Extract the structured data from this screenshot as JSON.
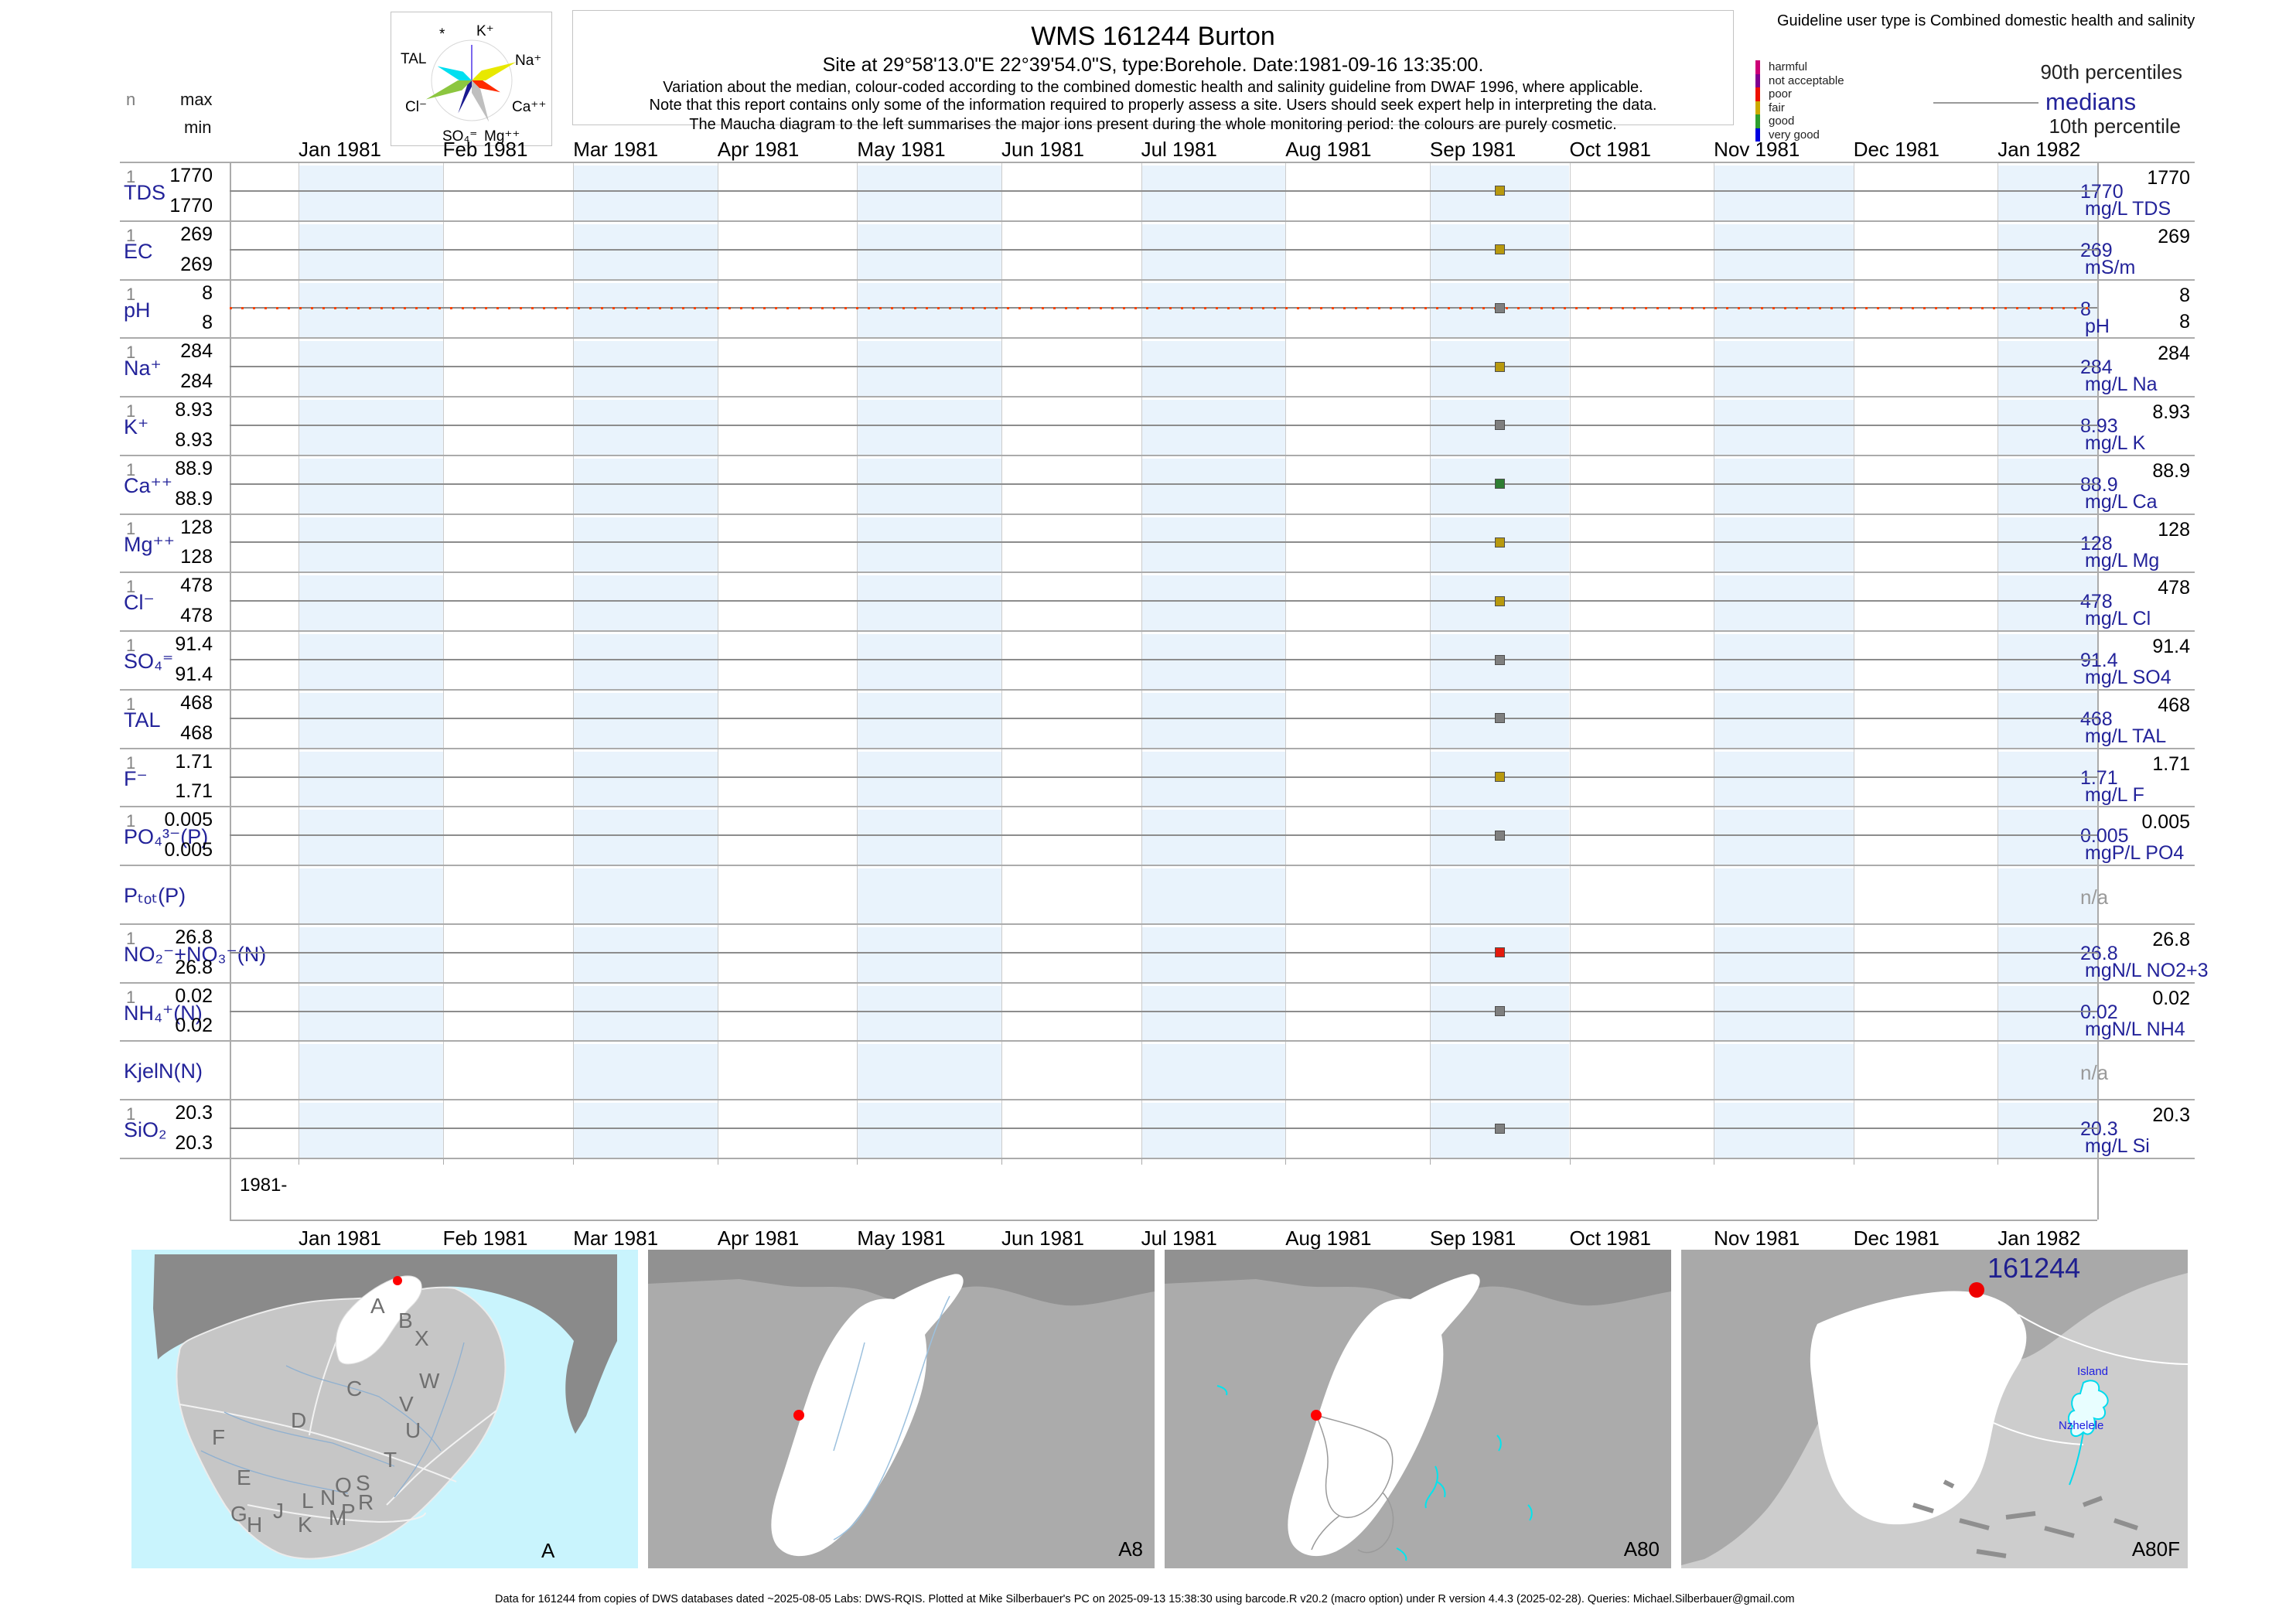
{
  "header": {
    "title": "WMS 161244  Burton",
    "subtitle": "Site at 29°58'13.0\"E 22°39'54.0\"S, type:Borehole. Date:1981-09-16 13:35:00.",
    "note1": "Variation about the median,  colour-coded according to the combined domestic health and salinity guideline from DWAF 1996, where applicable.",
    "note2": "Note that this report contains only some of the information required to properly assess a site. Users should seek expert help in interpreting the data.",
    "note3": "The Maucha diagram to the left summarises the major ions present during the whole monitoring period: the colours are purely cosmetic."
  },
  "minmax_legend": {
    "n": "n",
    "max": "max",
    "min": "min"
  },
  "maucha": {
    "ions": [
      {
        "label": "*",
        "color": null
      },
      {
        "label": "K⁺",
        "color": "#7b68ee"
      },
      {
        "label": "Na⁺",
        "color": "#e8e800"
      },
      {
        "label": "Ca⁺⁺",
        "color": "#ff2a00"
      },
      {
        "label": "Mg⁺⁺",
        "color": "#bfbfbf"
      },
      {
        "label": "SO₄⁼",
        "color": "#1a1a90"
      },
      {
        "label": "Cl⁻",
        "color": "#8cc63f"
      },
      {
        "label": "TAL",
        "color": "#00dff0"
      }
    ]
  },
  "guideline_legend": {
    "title": "Guideline user type is Combined domestic health and salinity",
    "classes": [
      {
        "label": "harmful",
        "color": "#cc0077"
      },
      {
        "label": "not acceptable",
        "color": "#800090"
      },
      {
        "label": "poor",
        "color": "#ee1100"
      },
      {
        "label": "fair",
        "color": "#ccaa00"
      },
      {
        "label": "good",
        "color": "#2e9e2e"
      },
      {
        "label": "very good",
        "color": "#0000e0"
      }
    ],
    "p90": "90th percentiles",
    "medians": "medians",
    "p10": "10th percentile"
  },
  "axis": {
    "months": [
      "Jan 1981",
      "Feb 1981",
      "Mar 1981",
      "Apr 1981",
      "May 1981",
      "Jun 1981",
      "Jul 1981",
      "Aug 1981",
      "Sep 1981",
      "Oct 1981",
      "Nov 1981",
      "Dec 1981",
      "Jan 1982"
    ],
    "year_label": "1981-"
  },
  "marker_colors": {
    "fair": "#b8990e",
    "good": "#2e7d32",
    "poor": "#e41a0c",
    "none": "#7f7f7f"
  },
  "rows": [
    {
      "name": "TDS",
      "n": "1",
      "max": "1770",
      "min": "1770",
      "p90": "1770",
      "median": "1770",
      "unit": "mg/L TDS",
      "marker": "fair"
    },
    {
      "name": "EC",
      "n": "1",
      "max": "269",
      "min": "269",
      "p90": "269",
      "median": "269",
      "unit": "mS/m",
      "marker": "fair"
    },
    {
      "name": "pH",
      "n": "1",
      "max": "8",
      "min": "8",
      "p90": "8",
      "median": "8",
      "unit": "pH",
      "marker": "none",
      "p10": "8",
      "guideline_line": true
    },
    {
      "name": "Na⁺",
      "n": "1",
      "max": "284",
      "min": "284",
      "p90": "284",
      "median": "284",
      "unit": "mg/L Na",
      "marker": "fair"
    },
    {
      "name": "K⁺",
      "n": "1",
      "max": "8.93",
      "min": "8.93",
      "p90": "8.93",
      "median": "8.93",
      "unit": "mg/L K",
      "marker": "none"
    },
    {
      "name": "Ca⁺⁺",
      "n": "1",
      "max": "88.9",
      "min": "88.9",
      "p90": "88.9",
      "median": "88.9",
      "unit": "mg/L Ca",
      "marker": "good"
    },
    {
      "name": "Mg⁺⁺",
      "n": "1",
      "max": "128",
      "min": "128",
      "p90": "128",
      "median": "128",
      "unit": "mg/L Mg",
      "marker": "fair"
    },
    {
      "name": "Cl⁻",
      "n": "1",
      "max": "478",
      "min": "478",
      "p90": "478",
      "median": "478",
      "unit": "mg/L Cl",
      "marker": "fair"
    },
    {
      "name": "SO₄⁼",
      "n": "1",
      "max": "91.4",
      "min": "91.4",
      "p90": "91.4",
      "median": "91.4",
      "unit": "mg/L SO4",
      "marker": "none"
    },
    {
      "name": "TAL",
      "n": "1",
      "max": "468",
      "min": "468",
      "p90": "468",
      "median": "468",
      "unit": "mg/L TAL",
      "marker": "none"
    },
    {
      "name": "F⁻",
      "n": "1",
      "max": "1.71",
      "min": "1.71",
      "p90": "1.71",
      "median": "1.71",
      "unit": "mg/L F",
      "marker": "fair"
    },
    {
      "name": "PO₄³⁻(P)",
      "n": "1",
      "max": "0.005",
      "min": "0.005",
      "p90": "0.005",
      "median": "0.005",
      "unit": "mgP/L PO4",
      "marker": "none"
    },
    {
      "name": "Pₜₒₜ(P)",
      "na": "n/a"
    },
    {
      "name": "NO₂⁻+NO₃⁻(N)",
      "n": "1",
      "max": "26.8",
      "min": "26.8",
      "p90": "26.8",
      "median": "26.8",
      "unit": "mgN/L NO2+3",
      "marker": "poor"
    },
    {
      "name": "NH₄⁺(N)",
      "n": "1",
      "max": "0.02",
      "min": "0.02",
      "p90": "0.02",
      "median": "0.02",
      "unit": "mgN/L NH4",
      "marker": "none"
    },
    {
      "name": "KjelN(N)",
      "na": "n/a"
    },
    {
      "name": "SiO₂",
      "n": "1",
      "max": "20.3",
      "min": "20.3",
      "p90": "20.3",
      "median": "20.3",
      "unit": "mg/L Si",
      "marker": "none"
    }
  ],
  "maps": {
    "panels": [
      {
        "label": "A",
        "letters": [
          "A",
          "B",
          "X",
          "C",
          "W",
          "V",
          "U",
          "D",
          "F",
          "T",
          "E",
          "Q",
          "S",
          "L",
          "N",
          "R",
          "J",
          "P",
          "M",
          "G",
          "H",
          "K"
        ]
      },
      {
        "label": "A8"
      },
      {
        "label": "A80"
      },
      {
        "label": "A80F",
        "site_label": "161244",
        "places": [
          "Island",
          "Nzhelele"
        ]
      }
    ],
    "footer": "Data for 161244 from copies of DWS databases dated ~2025-08-05 Labs: DWS-RQIS. Plotted at Mike Silberbauer's PC on 2025-09-13 15:38:30 using barcode.R v20.2 (macro option) under R version 4.4.3 (2025-02-28). Queries: Michael.Silberbauer@gmail.com"
  },
  "chart_data": {
    "type": "scatter",
    "title": "WMS 161244 Burton",
    "x_axis": {
      "ticks": [
        "Jan 1981",
        "Feb 1981",
        "Mar 1981",
        "Apr 1981",
        "May 1981",
        "Jun 1981",
        "Jul 1981",
        "Aug 1981",
        "Sep 1981",
        "Oct 1981",
        "Nov 1981",
        "Dec 1981",
        "Jan 1982"
      ],
      "range": [
        "1980-12-17",
        "1982-01-21"
      ]
    },
    "sample_date": "1981-09-16",
    "legend_position": "top-right",
    "grid": "month bands, alternating light blue",
    "parameters": [
      {
        "name": "TDS",
        "unit": "mg/L TDS",
        "n": 1,
        "min": 1770,
        "max": 1770,
        "median": 1770,
        "p90": 1770,
        "value": 1770,
        "class": "fair"
      },
      {
        "name": "EC",
        "unit": "mS/m",
        "n": 1,
        "min": 269,
        "max": 269,
        "median": 269,
        "p90": 269,
        "value": 269,
        "class": "fair"
      },
      {
        "name": "pH",
        "unit": "pH",
        "n": 1,
        "min": 8,
        "max": 8,
        "median": 8,
        "p90": 8,
        "p10": 8,
        "value": 8,
        "class": "none",
        "guideline_line": true
      },
      {
        "name": "Na",
        "unit": "mg/L Na",
        "n": 1,
        "min": 284,
        "max": 284,
        "median": 284,
        "p90": 284,
        "value": 284,
        "class": "fair"
      },
      {
        "name": "K",
        "unit": "mg/L K",
        "n": 1,
        "min": 8.93,
        "max": 8.93,
        "median": 8.93,
        "p90": 8.93,
        "value": 8.93,
        "class": "none"
      },
      {
        "name": "Ca",
        "unit": "mg/L Ca",
        "n": 1,
        "min": 88.9,
        "max": 88.9,
        "median": 88.9,
        "p90": 88.9,
        "value": 88.9,
        "class": "good"
      },
      {
        "name": "Mg",
        "unit": "mg/L Mg",
        "n": 1,
        "min": 128,
        "max": 128,
        "median": 128,
        "p90": 128,
        "value": 128,
        "class": "fair"
      },
      {
        "name": "Cl",
        "unit": "mg/L Cl",
        "n": 1,
        "min": 478,
        "max": 478,
        "median": 478,
        "p90": 478,
        "value": 478,
        "class": "fair"
      },
      {
        "name": "SO4",
        "unit": "mg/L SO4",
        "n": 1,
        "min": 91.4,
        "max": 91.4,
        "median": 91.4,
        "p90": 91.4,
        "value": 91.4,
        "class": "none"
      },
      {
        "name": "TAL",
        "unit": "mg/L TAL",
        "n": 1,
        "min": 468,
        "max": 468,
        "median": 468,
        "p90": 468,
        "value": 468,
        "class": "none"
      },
      {
        "name": "F",
        "unit": "mg/L F",
        "n": 1,
        "min": 1.71,
        "max": 1.71,
        "median": 1.71,
        "p90": 1.71,
        "value": 1.71,
        "class": "fair"
      },
      {
        "name": "PO4(P)",
        "unit": "mgP/L PO4",
        "n": 1,
        "min": 0.005,
        "max": 0.005,
        "median": 0.005,
        "p90": 0.005,
        "value": 0.005,
        "class": "none"
      },
      {
        "name": "Ptot(P)",
        "unit": null,
        "n": 0,
        "value": null
      },
      {
        "name": "NO2+NO3(N)",
        "unit": "mgN/L NO2+3",
        "n": 1,
        "min": 26.8,
        "max": 26.8,
        "median": 26.8,
        "p90": 26.8,
        "value": 26.8,
        "class": "poor"
      },
      {
        "name": "NH4(N)",
        "unit": "mgN/L NH4",
        "n": 1,
        "min": 0.02,
        "max": 0.02,
        "median": 0.02,
        "p90": 0.02,
        "value": 0.02,
        "class": "none"
      },
      {
        "name": "KjelN(N)",
        "unit": null,
        "n": 0,
        "value": null
      },
      {
        "name": "SiO2",
        "unit": "mg/L Si",
        "n": 1,
        "min": 20.3,
        "max": 20.3,
        "median": 20.3,
        "p90": 20.3,
        "value": 20.3,
        "class": "none"
      }
    ]
  }
}
